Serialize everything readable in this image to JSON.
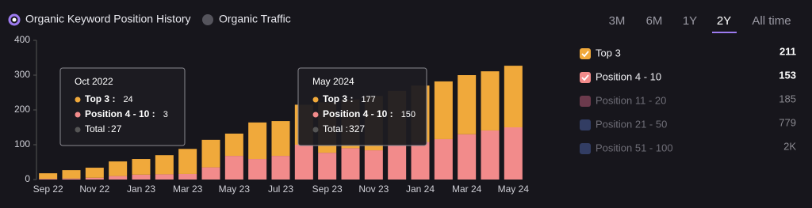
{
  "toggles": [
    "Organic Keyword Position History",
    "Organic Traffic"
  ],
  "ranges": [
    "3M",
    "6M",
    "1Y",
    "2Y",
    "All time"
  ],
  "chart_data": {
    "type": "stacked-bar",
    "categories": [
      "Sep 22",
      null,
      "Nov 22",
      null,
      "Jan 23",
      null,
      "Mar 23",
      null,
      "May 23",
      null,
      "Jul 23",
      null,
      "Sep 23",
      null,
      "Nov 23",
      null,
      "Jan 24",
      null,
      "Mar 24",
      null,
      "May 24"
    ],
    "series": [
      {
        "name": "Position 4 - 10",
        "color": "#f28b8b",
        "count": 153,
        "values": [
          2,
          3,
          5,
          10,
          14,
          15,
          16,
          35,
          68,
          59,
          68,
          100,
          77,
          90,
          84,
          100,
          108,
          116,
          130,
          141,
          150
        ]
      },
      {
        "name": "Top 3",
        "color": "#f0a93b",
        "count": 211,
        "values": [
          16,
          24,
          29,
          42,
          45,
          55,
          72,
          79,
          64,
          105,
          100,
          115,
          145,
          140,
          156,
          155,
          162,
          166,
          170,
          170,
          177
        ]
      }
    ],
    "ylim": [
      0,
      400
    ],
    "yticks": [
      0,
      100,
      200,
      300,
      400
    ]
  },
  "other_positions": [
    {
      "name": "Position 11 - 20",
      "color": "#6b3a4c",
      "count": 185
    },
    {
      "name": "Position 21 - 50",
      "color": "#323d63",
      "count": 779
    },
    {
      "name": "Position 51 - 100",
      "color": "#323d63",
      "count": 2000,
      "count_label": "2K"
    }
  ],
  "tooltips": [
    {
      "title": "Oct 2022",
      "rows": [
        {
          "label": "Top 3 :",
          "value": 24
        },
        {
          "label": "Position 4 - 10 :",
          "value": 3
        }
      ],
      "total_label": "Total :",
      "total": 27
    },
    {
      "title": "May 2024",
      "rows": [
        {
          "label": "Top 3 :",
          "value": 177
        },
        {
          "label": "Position 4 - 10 :",
          "value": 150
        }
      ],
      "total_label": "Total :",
      "total": 327
    }
  ]
}
